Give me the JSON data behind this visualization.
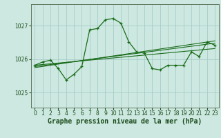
{
  "xlabel": "Graphe pression niveau de la mer (hPa)",
  "bg_color": "#cce8e0",
  "grid_color": "#a8ccc8",
  "line_color": "#1a6b1a",
  "ylim": [
    1024.55,
    1027.65
  ],
  "yticks": [
    1025,
    1026,
    1027
  ],
  "xticks": [
    0,
    1,
    2,
    3,
    4,
    5,
    6,
    7,
    8,
    9,
    10,
    11,
    12,
    13,
    14,
    15,
    16,
    17,
    18,
    19,
    20,
    21,
    22,
    23
  ],
  "series1": [
    1025.82,
    1025.92,
    1025.97,
    1025.72,
    1025.38,
    1025.55,
    1025.78,
    1026.88,
    1026.92,
    1027.18,
    1027.22,
    1027.08,
    1026.52,
    1026.22,
    1026.18,
    1025.72,
    1025.68,
    1025.82,
    1025.82,
    1025.82,
    1026.22,
    1026.08,
    1026.52,
    1026.42
  ],
  "trend1_x": [
    0,
    23
  ],
  "trend1_y": [
    1025.78,
    1026.48
  ],
  "trend2_x": [
    0,
    23
  ],
  "trend2_y": [
    1025.82,
    1026.32
  ],
  "trend3_x": [
    0,
    23
  ],
  "trend3_y": [
    1025.75,
    1026.55
  ],
  "tick_fontsize": 5.5,
  "xlabel_fontsize": 7.0,
  "text_color": "#1a4a1a"
}
